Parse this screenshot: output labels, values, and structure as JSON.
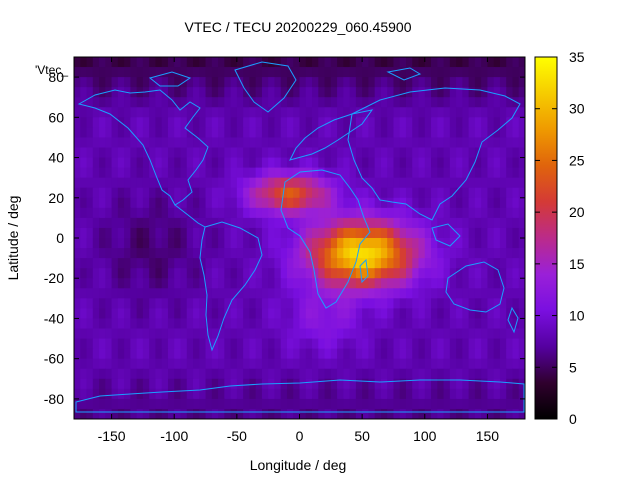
{
  "chart_data": {
    "type": "heatmap",
    "title": "VTEC / TECU 20200229_060.45900",
    "xlabel": "Longitude / deg",
    "ylabel": "Latitude / deg",
    "series_label": "'Vtec_",
    "xlim": [
      -180,
      180
    ],
    "ylim": [
      -90,
      90
    ],
    "x_ticks": [
      -150,
      -100,
      -50,
      0,
      50,
      100,
      150
    ],
    "y_ticks": [
      -80,
      -60,
      -40,
      -20,
      0,
      20,
      40,
      60,
      80
    ],
    "colorbar": {
      "range": [
        0,
        35
      ],
      "ticks": [
        0,
        5,
        10,
        15,
        20,
        25,
        30,
        35
      ],
      "palette": [
        "#000000",
        "#30002e",
        "#5500a0",
        "#7a0fe0",
        "#9a20d8",
        "#bb2b8a",
        "#d43a36",
        "#e0640c",
        "#ef9a00",
        "#f6cc00",
        "#ffff00"
      ]
    },
    "peaks": [
      {
        "lon": 50,
        "lat": -8,
        "value": 33
      },
      {
        "lon": -8,
        "lat": 22,
        "value": 27
      }
    ],
    "background_value": 8
  }
}
